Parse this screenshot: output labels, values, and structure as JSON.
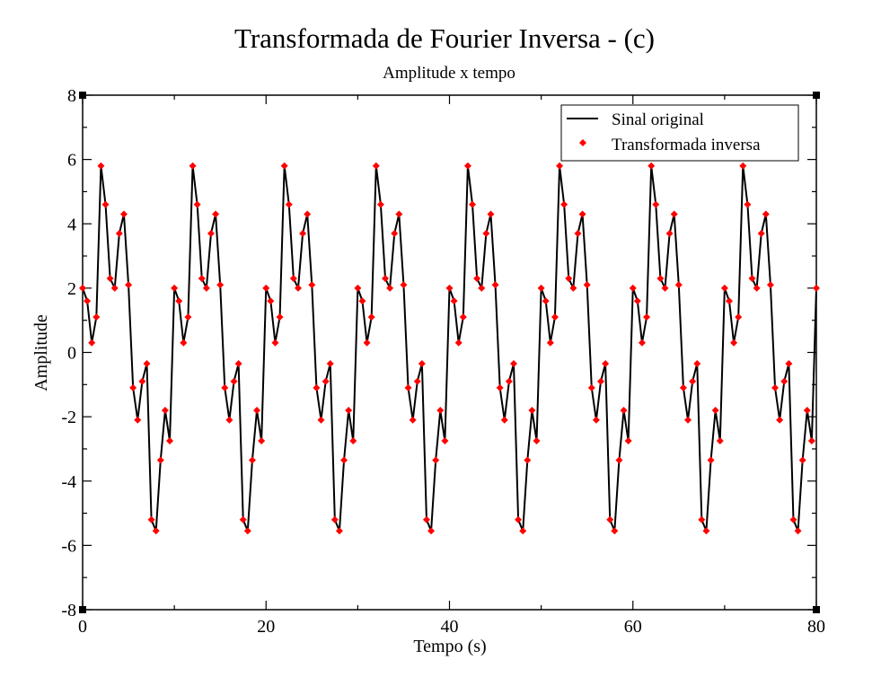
{
  "chart_data": {
    "type": "line",
    "title": "Transformada de Fourier Inversa - (c)",
    "subtitle": "Amplitude x tempo",
    "xlabel": "Tempo (s)",
    "ylabel": "Amplitude",
    "xlim": [
      0,
      80
    ],
    "ylim": [
      -8,
      8
    ],
    "x_ticks": [
      "0",
      "20",
      "40",
      "60",
      "80"
    ],
    "y_ticks": [
      "-8",
      "-6",
      "-4",
      "-2",
      "0",
      "2",
      "4",
      "6",
      "8"
    ],
    "grid": false,
    "legend_position": "top-right",
    "series": [
      {
        "name": "Sinal original",
        "style": "line",
        "color": "#000000",
        "period": 10,
        "x": [
          0.0,
          0.5,
          1.0,
          1.5,
          2.0,
          2.5,
          3.0,
          3.5,
          4.0,
          4.5,
          5.0,
          5.5,
          6.0,
          6.5,
          7.0,
          7.5,
          8.0,
          8.5,
          9.0,
          9.5
        ],
        "y": [
          2.0,
          1.6,
          0.3,
          1.1,
          5.8,
          4.6,
          2.3,
          2.0,
          3.7,
          4.3,
          2.1,
          -1.1,
          -2.1,
          -0.9,
          -0.35,
          -5.2,
          -5.55,
          -3.35,
          -1.8,
          -2.75
        ]
      },
      {
        "name": "Transformada inversa",
        "style": "markers",
        "marker": "diamond",
        "color": "#ff0000",
        "period": 10,
        "x": [
          0.0,
          0.5,
          1.0,
          1.5,
          2.0,
          2.5,
          3.0,
          3.5,
          4.0,
          4.5,
          5.0,
          5.5,
          6.0,
          6.5,
          7.0,
          7.5,
          8.0,
          8.5,
          9.0,
          9.5
        ],
        "y": [
          2.0,
          1.6,
          0.3,
          1.1,
          5.8,
          4.6,
          2.3,
          2.0,
          3.7,
          4.3,
          2.1,
          -1.1,
          -2.1,
          -0.9,
          -0.35,
          -5.2,
          -5.55,
          -3.35,
          -1.8,
          -2.75
        ]
      }
    ]
  }
}
